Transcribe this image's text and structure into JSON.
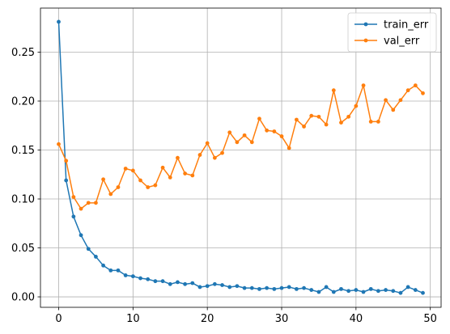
{
  "chart_data": {
    "type": "line",
    "grid": true,
    "legend_position": "top-right",
    "xlim": [
      -2.45,
      51.45
    ],
    "ylim": [
      -0.0107,
      0.295
    ],
    "xticks": [
      0,
      10,
      20,
      30,
      40,
      50
    ],
    "yticks": [
      0.0,
      0.05,
      0.1,
      0.15,
      0.2,
      0.25
    ],
    "ytick_labels": [
      "0.00",
      "0.05",
      "0.10",
      "0.15",
      "0.20",
      "0.25"
    ],
    "series": [
      {
        "name": "train_err",
        "color": "#1f77b4",
        "x": [
          0,
          1,
          2,
          3,
          4,
          5,
          6,
          7,
          8,
          9,
          10,
          11,
          12,
          13,
          14,
          15,
          16,
          17,
          18,
          19,
          20,
          21,
          22,
          23,
          24,
          25,
          26,
          27,
          28,
          29,
          30,
          31,
          32,
          33,
          34,
          35,
          36,
          37,
          38,
          39,
          40,
          41,
          42,
          43,
          44,
          45,
          46,
          47,
          48,
          49
        ],
        "values": [
          0.281,
          0.119,
          0.082,
          0.063,
          0.049,
          0.041,
          0.032,
          0.027,
          0.027,
          0.022,
          0.021,
          0.019,
          0.018,
          0.016,
          0.016,
          0.013,
          0.015,
          0.013,
          0.014,
          0.01,
          0.011,
          0.013,
          0.012,
          0.01,
          0.011,
          0.009,
          0.009,
          0.008,
          0.009,
          0.008,
          0.009,
          0.01,
          0.008,
          0.009,
          0.007,
          0.005,
          0.01,
          0.005,
          0.008,
          0.006,
          0.007,
          0.005,
          0.008,
          0.006,
          0.007,
          0.006,
          0.004,
          0.01,
          0.007,
          0.004
        ]
      },
      {
        "name": "val_err",
        "color": "#ff7f0e",
        "x": [
          0,
          1,
          2,
          3,
          4,
          5,
          6,
          7,
          8,
          9,
          10,
          11,
          12,
          13,
          14,
          15,
          16,
          17,
          18,
          19,
          20,
          21,
          22,
          23,
          24,
          25,
          26,
          27,
          28,
          29,
          30,
          31,
          32,
          33,
          34,
          35,
          36,
          37,
          38,
          39,
          40,
          41,
          42,
          43,
          44,
          45,
          46,
          47,
          48,
          49
        ],
        "values": [
          0.156,
          0.139,
          0.102,
          0.09,
          0.096,
          0.096,
          0.12,
          0.105,
          0.112,
          0.131,
          0.129,
          0.119,
          0.112,
          0.114,
          0.132,
          0.122,
          0.142,
          0.126,
          0.124,
          0.145,
          0.157,
          0.142,
          0.147,
          0.168,
          0.158,
          0.165,
          0.158,
          0.182,
          0.17,
          0.169,
          0.164,
          0.152,
          0.181,
          0.174,
          0.185,
          0.184,
          0.176,
          0.211,
          0.178,
          0.184,
          0.195,
          0.216,
          0.179,
          0.179,
          0.201,
          0.191,
          0.201,
          0.211,
          0.216,
          0.208
        ]
      }
    ]
  }
}
